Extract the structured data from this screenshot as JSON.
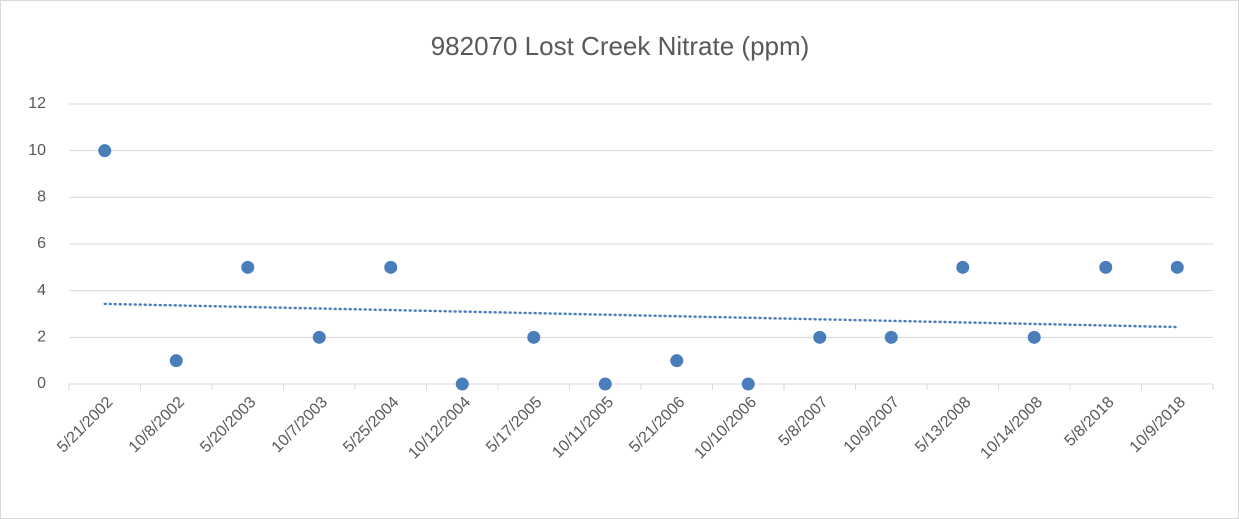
{
  "chart_data": {
    "type": "line",
    "title": "982070 Lost Creek Nitrate (ppm)",
    "categories": [
      "5/21/2002",
      "10/8/2002",
      "5/20/2003",
      "10/7/2003",
      "5/25/2004",
      "10/12/2004",
      "5/17/2005",
      "10/11/2005",
      "5/21/2006",
      "10/10/2006",
      "5/8/2007",
      "10/9/2007",
      "5/13/2008",
      "10/14/2008",
      "5/8/2018",
      "10/9/2018"
    ],
    "series": [
      {
        "name": "Nitrate",
        "color": "#4a7ebb",
        "values": [
          10,
          1,
          5,
          2,
          5,
          0,
          2,
          0,
          1,
          0,
          2,
          2,
          5,
          2,
          5,
          5
        ]
      }
    ],
    "trendline": "linear",
    "ylim": [
      0,
      12
    ],
    "yticks": [
      0,
      2,
      4,
      6,
      8,
      10,
      12
    ],
    "grid": true
  }
}
